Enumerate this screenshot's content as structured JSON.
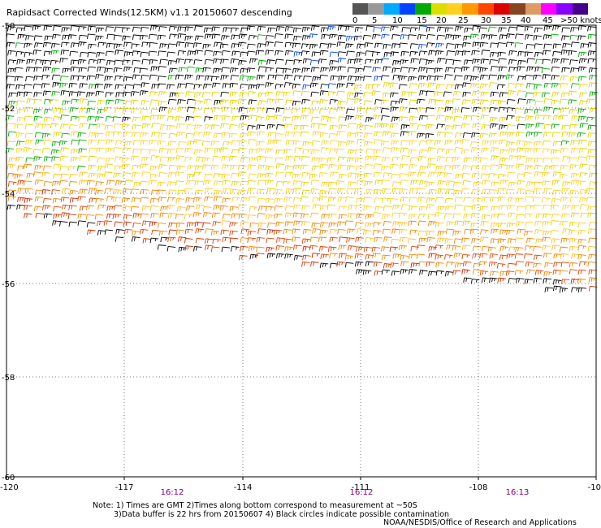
{
  "title": "Rapidsact Corrected Winds(12.5KM) v1.1 20150607 descending",
  "legend": {
    "colors": [
      "#555555",
      "#999999",
      "#00aaff",
      "#0044ff",
      "#00aa00",
      "#dddd00",
      "#ffd020",
      "#ff9900",
      "#ff4400",
      "#dd0000",
      "#884422",
      "#dd9966",
      "#ff00ff",
      "#8800ff",
      "#440088"
    ],
    "labels": [
      "0",
      "5",
      "10",
      "15",
      "20",
      "25",
      "30",
      "35",
      "40",
      "45",
      ">50 knots"
    ]
  },
  "map": {
    "lon_ticks": [
      "-120",
      "-117",
      "-114",
      "-111",
      "-108",
      "-10"
    ],
    "lat_ticks": [
      "-50",
      "-52",
      "-54",
      "-56",
      "-58",
      "-60"
    ],
    "times": [
      "16:12",
      "16:12",
      "16:13"
    ],
    "lon_range": [
      -120,
      -105
    ],
    "lat_range": [
      -60,
      -50
    ]
  },
  "notes": [
    "Note: 1) Times are GMT 2)Times along bottom correspond to measurement at ~50S",
    "3)Data buffer is 22 hrs from 20150607 4) Black circles indicate possible contamination"
  ],
  "credit": "NOAA/NESDIS/Office of Research and Applications"
}
